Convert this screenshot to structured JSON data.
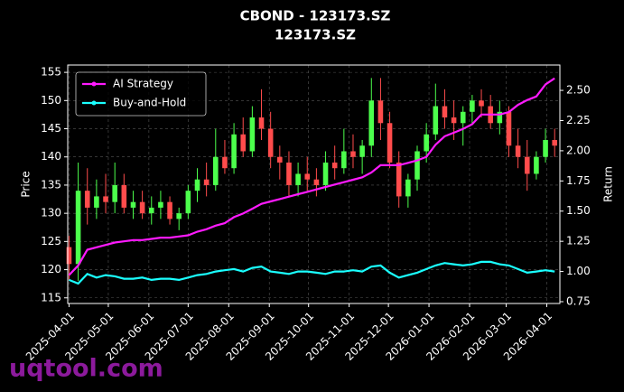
{
  "chart_data": {
    "type": "candlestick",
    "title": "CBOND - 123173.SZ",
    "subtitle": "123173.SZ",
    "ylabel": "Price",
    "y2label": "Return",
    "watermark": "uqtool.com",
    "x": [
      "2025-04-01",
      "2025-04-08",
      "2025-04-15",
      "2025-04-22",
      "2025-04-29",
      "2025-05-06",
      "2025-05-13",
      "2025-05-20",
      "2025-05-27",
      "2025-06-03",
      "2025-06-10",
      "2025-06-17",
      "2025-06-24",
      "2025-07-01",
      "2025-07-08",
      "2025-07-15",
      "2025-07-22",
      "2025-07-29",
      "2025-08-05",
      "2025-08-12",
      "2025-08-19",
      "2025-08-26",
      "2025-09-02",
      "2025-09-09",
      "2025-09-16",
      "2025-09-23",
      "2025-09-30",
      "2025-10-07",
      "2025-10-14",
      "2025-10-21",
      "2025-10-28",
      "2025-11-04",
      "2025-11-11",
      "2025-11-18",
      "2025-11-25",
      "2025-12-02",
      "2025-12-09",
      "2025-12-16",
      "2025-12-23",
      "2025-12-30",
      "2026-01-06",
      "2026-01-13",
      "2026-01-20",
      "2026-01-27",
      "2026-02-03",
      "2026-02-10",
      "2026-02-17",
      "2026-02-24",
      "2026-03-03",
      "2026-03-10",
      "2026-03-17",
      "2026-03-24",
      "2026-03-31",
      "2026-04-07"
    ],
    "open": [
      124,
      121,
      134,
      131,
      133,
      132,
      135,
      131,
      132,
      130,
      131,
      132,
      129,
      130,
      134,
      136,
      135,
      140,
      138,
      144,
      141,
      147,
      145,
      140,
      139,
      135,
      137,
      136,
      135,
      139,
      138,
      141,
      140,
      142,
      150,
      146,
      139,
      133,
      136,
      141,
      144,
      149,
      147,
      146,
      148,
      150,
      149,
      146,
      148,
      142,
      140,
      137,
      140,
      143
    ],
    "high": [
      126,
      139,
      138,
      136,
      137,
      139,
      137,
      134,
      134,
      133,
      134,
      133,
      131,
      135,
      138,
      139,
      145,
      143,
      146,
      147,
      149,
      152,
      148,
      142,
      141,
      139,
      140,
      138,
      141,
      142,
      145,
      144,
      143,
      154,
      154,
      148,
      141,
      137,
      142,
      146,
      153,
      152,
      150,
      149,
      151,
      152,
      151,
      150,
      149,
      145,
      143,
      141,
      145,
      145
    ],
    "low": [
      118,
      118,
      128,
      129,
      130,
      130,
      130,
      129,
      129,
      128,
      129,
      128,
      127,
      129,
      132,
      133,
      134,
      137,
      137,
      140,
      140,
      143,
      138,
      136,
      133,
      133,
      134,
      133,
      134,
      136,
      137,
      138,
      137,
      140,
      143,
      138,
      131,
      131,
      134,
      139,
      143,
      145,
      143,
      142,
      146,
      147,
      145,
      144,
      140,
      138,
      134,
      136,
      139,
      140
    ],
    "close": [
      121,
      134,
      131,
      133,
      132,
      135,
      131,
      132,
      130,
      131,
      132,
      129,
      130,
      134,
      136,
      135,
      140,
      138,
      144,
      141,
      147,
      145,
      140,
      139,
      135,
      137,
      136,
      135,
      139,
      138,
      141,
      140,
      142,
      150,
      146,
      139,
      133,
      136,
      141,
      144,
      149,
      147,
      146,
      148,
      150,
      149,
      146,
      148,
      142,
      140,
      137,
      140,
      143,
      142
    ],
    "up_color": "#4cff4c",
    "down_color": "#ff4c4c",
    "series": [
      {
        "name": "AI Strategy",
        "color": "#ff1aff",
        "axis": "y2",
        "values": [
          0.97,
          1.05,
          1.18,
          1.2,
          1.22,
          1.24,
          1.25,
          1.26,
          1.26,
          1.27,
          1.28,
          1.28,
          1.29,
          1.3,
          1.33,
          1.35,
          1.38,
          1.4,
          1.45,
          1.48,
          1.52,
          1.56,
          1.58,
          1.6,
          1.62,
          1.64,
          1.66,
          1.68,
          1.7,
          1.72,
          1.74,
          1.76,
          1.78,
          1.82,
          1.88,
          1.88,
          1.88,
          1.9,
          1.92,
          1.95,
          2.05,
          2.12,
          2.15,
          2.18,
          2.22,
          2.3,
          2.3,
          2.3,
          2.32,
          2.38,
          2.42,
          2.45,
          2.55,
          2.6
        ]
      },
      {
        "name": "Buy-and-Hold",
        "color": "#1affff",
        "axis": "y2",
        "values": [
          0.93,
          0.9,
          0.98,
          0.95,
          0.97,
          0.96,
          0.94,
          0.94,
          0.95,
          0.93,
          0.94,
          0.94,
          0.93,
          0.95,
          0.97,
          0.98,
          1.0,
          1.01,
          1.02,
          1.0,
          1.03,
          1.04,
          1.0,
          0.99,
          0.98,
          1.0,
          1.0,
          0.99,
          0.98,
          1.0,
          1.0,
          1.01,
          1.0,
          1.04,
          1.05,
          0.99,
          0.95,
          0.97,
          0.99,
          1.02,
          1.05,
          1.07,
          1.06,
          1.05,
          1.06,
          1.08,
          1.08,
          1.06,
          1.05,
          1.02,
          0.99,
          1.0,
          1.01,
          1.0
        ]
      }
    ],
    "xlim": [
      "2025-03-31",
      "2026-04-11"
    ],
    "xticks": [
      "2025-04-01",
      "2025-05-01",
      "2025-06-01",
      "2025-07-01",
      "2025-08-01",
      "2025-09-01",
      "2025-10-01",
      "2025-11-01",
      "2025-12-01",
      "2026-01-01",
      "2026-02-01",
      "2026-03-01",
      "2026-04-01"
    ],
    "ylim": [
      114,
      156.3
    ],
    "yticks": [
      115,
      120,
      125,
      130,
      135,
      140,
      145,
      150,
      155
    ],
    "y2lim": [
      0.735,
      2.71
    ],
    "y2ticks": [
      {
        "value": 0.75,
        "label": "0.75"
      },
      {
        "value": 1,
        "label": "1.00"
      },
      {
        "value": 1.25,
        "label": "1.25"
      },
      {
        "value": 1.5,
        "label": "1.50"
      },
      {
        "value": 1.75,
        "label": "1.75"
      },
      {
        "value": 2,
        "label": "2.00"
      },
      {
        "value": 2.25,
        "label": "2.25"
      },
      {
        "value": 2.5,
        "label": "2.50"
      }
    ],
    "grid": true,
    "legend": "upper left"
  }
}
